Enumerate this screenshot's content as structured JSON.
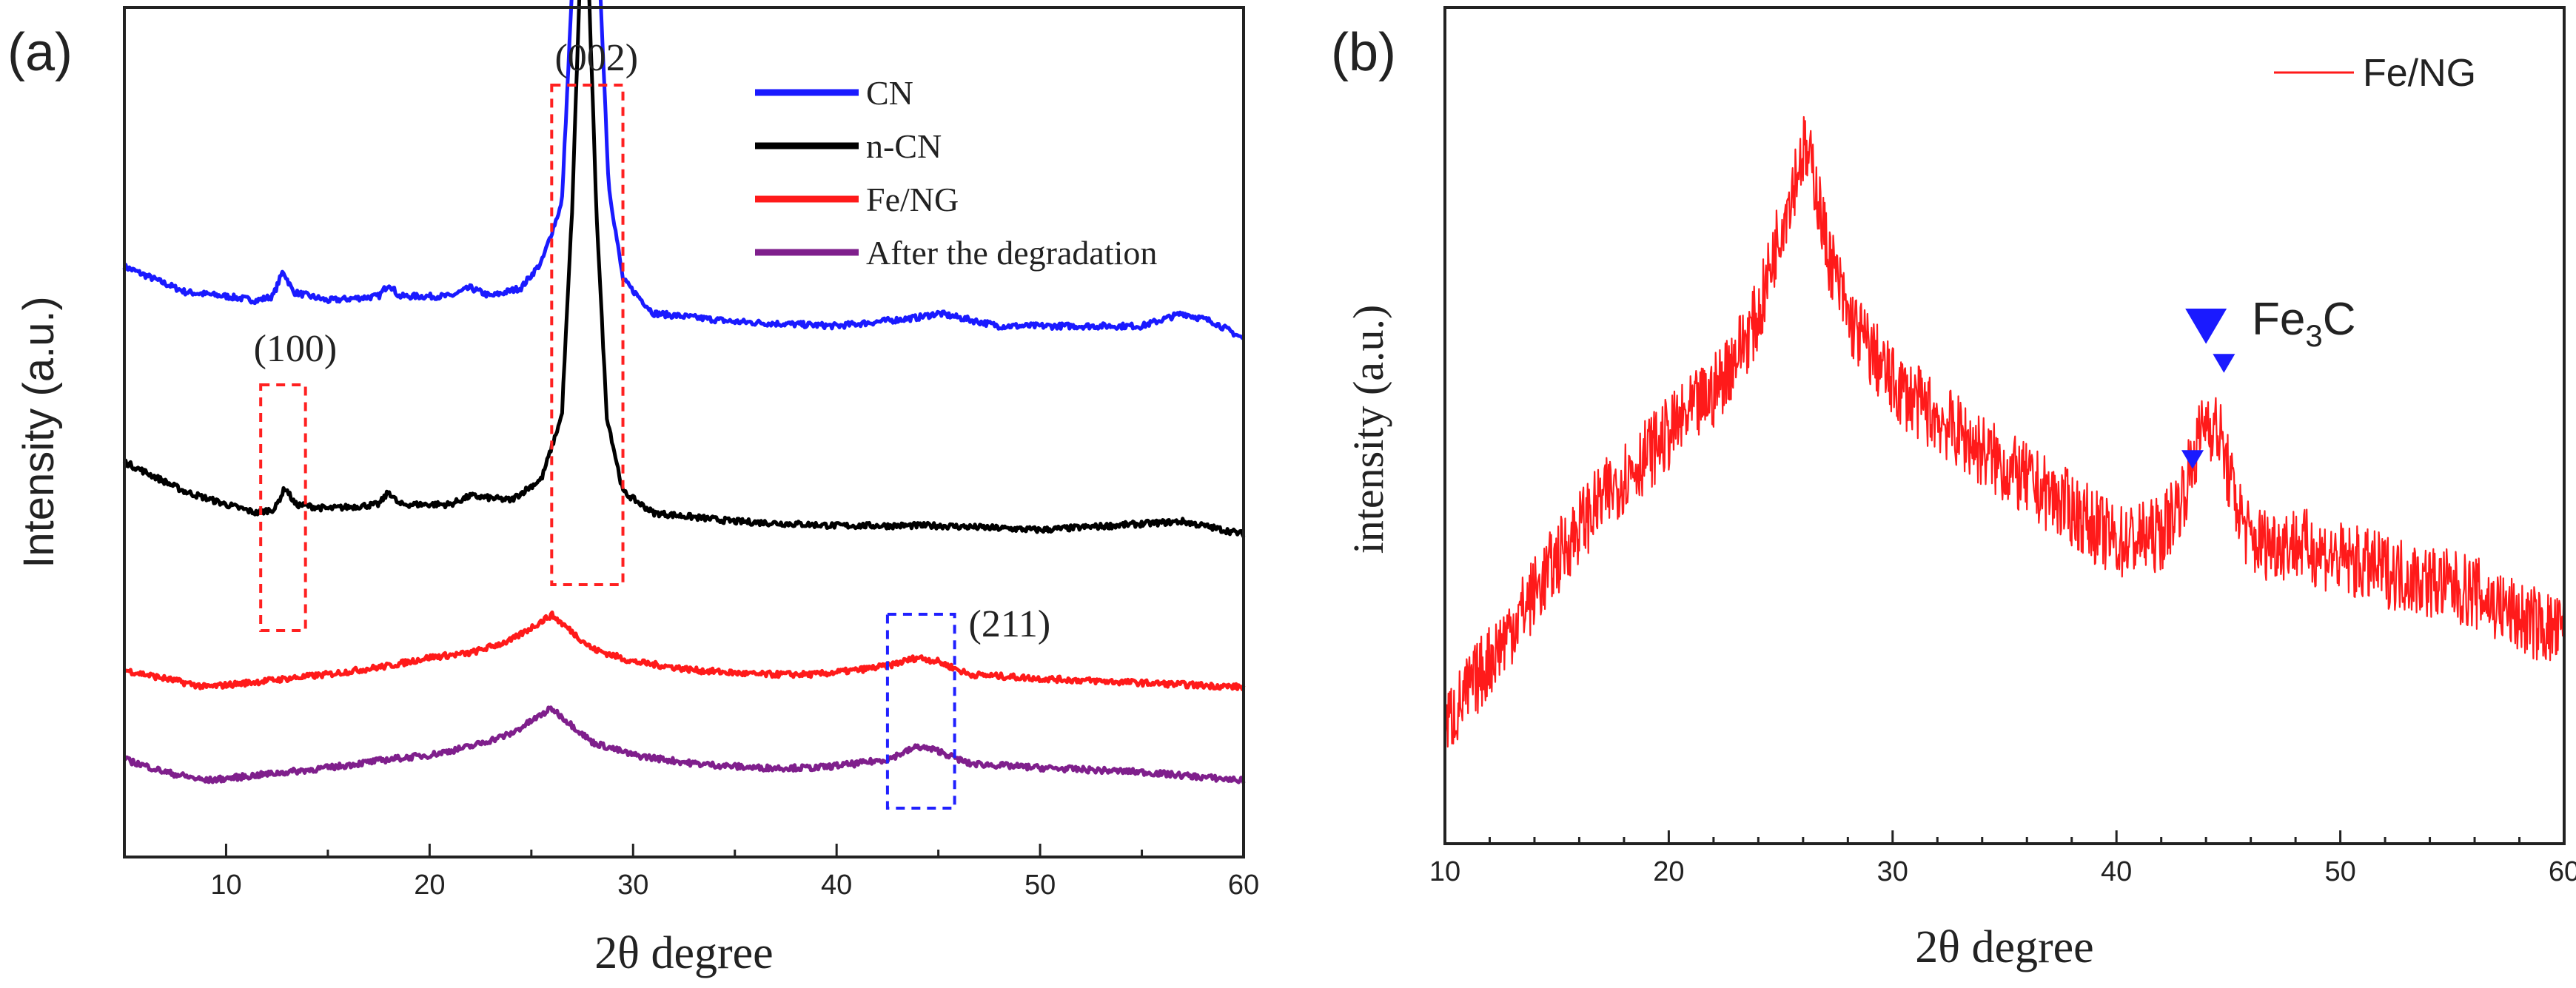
{
  "chart_data": [
    {
      "type": "line",
      "panel_label": "(a)",
      "xlabel": "2θ  degree",
      "ylabel": "Intensity (a.u.)",
      "xlim": [
        5,
        60
      ],
      "xticks": [
        10,
        20,
        30,
        40,
        50,
        60
      ],
      "ylim": [
        0,
        1
      ],
      "legend_position": "top-right",
      "series": [
        {
          "name": "CN",
          "color": "#1a1aff",
          "offset": 0.57,
          "points": [
            [
              5,
              0.125
            ],
            [
              8,
              0.095
            ],
            [
              10,
              0.09
            ],
            [
              11.5,
              0.085
            ],
            [
              12.3,
              0.09
            ],
            [
              12.8,
              0.12
            ],
            [
              13.3,
              0.095
            ],
            [
              15,
              0.085
            ],
            [
              17.5,
              0.09
            ],
            [
              18,
              0.105
            ],
            [
              18.5,
              0.09
            ],
            [
              21,
              0.09
            ],
            [
              22,
              0.1
            ],
            [
              23,
              0.09
            ],
            [
              24.5,
              0.1
            ],
            [
              25.5,
              0.13
            ],
            [
              26.5,
              0.2
            ],
            [
              27.1,
              0.5
            ],
            [
              27.5,
              0.85
            ],
            [
              27.7,
              0.93
            ],
            [
              27.9,
              0.85
            ],
            [
              28.3,
              0.5
            ],
            [
              28.8,
              0.22
            ],
            [
              29.5,
              0.11
            ],
            [
              31,
              0.07
            ],
            [
              35,
              0.06
            ],
            [
              40,
              0.055
            ],
            [
              44,
              0.065
            ],
            [
              45,
              0.07
            ],
            [
              48,
              0.055
            ],
            [
              55,
              0.055
            ],
            [
              57,
              0.07
            ],
            [
              58.5,
              0.06
            ],
            [
              60,
              0.04
            ]
          ]
        },
        {
          "name": "n-CN",
          "color": "#000000",
          "offset": 0.36,
          "points": [
            [
              5,
              0.105
            ],
            [
              8,
              0.07
            ],
            [
              10,
              0.055
            ],
            [
              11.5,
              0.045
            ],
            [
              12.4,
              0.05
            ],
            [
              12.9,
              0.075
            ],
            [
              13.4,
              0.055
            ],
            [
              15,
              0.05
            ],
            [
              17.5,
              0.055
            ],
            [
              18,
              0.07
            ],
            [
              18.5,
              0.055
            ],
            [
              21,
              0.055
            ],
            [
              22,
              0.065
            ],
            [
              24,
              0.06
            ],
            [
              25.5,
              0.085
            ],
            [
              26.5,
              0.16
            ],
            [
              27,
              0.4
            ],
            [
              27.4,
              0.68
            ],
            [
              27.6,
              0.74
            ],
            [
              27.8,
              0.68
            ],
            [
              28.2,
              0.4
            ],
            [
              28.7,
              0.16
            ],
            [
              29.5,
              0.07
            ],
            [
              31,
              0.045
            ],
            [
              35,
              0.035
            ],
            [
              40,
              0.03
            ],
            [
              45,
              0.03
            ],
            [
              50,
              0.025
            ],
            [
              57,
              0.035
            ],
            [
              60,
              0.02
            ]
          ]
        },
        {
          "name": "Fe/NG",
          "color": "#ff1a1a",
          "offset": 0.205,
          "points": [
            [
              5,
              0.015
            ],
            [
              7,
              0.005
            ],
            [
              9,
              -0.005
            ],
            [
              11,
              0.0
            ],
            [
              13,
              0.005
            ],
            [
              15,
              0.01
            ],
            [
              18,
              0.02
            ],
            [
              20,
              0.03
            ],
            [
              22,
              0.035
            ],
            [
              24,
              0.05
            ],
            [
              25,
              0.065
            ],
            [
              26,
              0.08
            ],
            [
              27,
              0.06
            ],
            [
              28,
              0.04
            ],
            [
              30,
              0.025
            ],
            [
              33,
              0.015
            ],
            [
              36,
              0.01
            ],
            [
              39,
              0.01
            ],
            [
              41,
              0.015
            ],
            [
              42.5,
              0.02
            ],
            [
              44,
              0.03
            ],
            [
              45,
              0.025
            ],
            [
              46.5,
              0.01
            ],
            [
              50,
              0.005
            ],
            [
              55,
              0.0
            ],
            [
              60,
              -0.005
            ]
          ]
        },
        {
          "name": "After the degradation",
          "color": "#7f1f8c",
          "offset": 0.09,
          "points": [
            [
              5,
              0.025
            ],
            [
              7,
              0.01
            ],
            [
              9,
              0.0
            ],
            [
              11,
              0.005
            ],
            [
              13,
              0.01
            ],
            [
              15,
              0.015
            ],
            [
              18,
              0.025
            ],
            [
              20,
              0.03
            ],
            [
              22,
              0.04
            ],
            [
              24,
              0.055
            ],
            [
              25,
              0.07
            ],
            [
              26,
              0.085
            ],
            [
              27,
              0.065
            ],
            [
              28,
              0.045
            ],
            [
              30,
              0.03
            ],
            [
              33,
              0.02
            ],
            [
              36,
              0.015
            ],
            [
              39,
              0.015
            ],
            [
              41,
              0.02
            ],
            [
              42.5,
              0.025
            ],
            [
              44,
              0.04
            ],
            [
              45,
              0.035
            ],
            [
              46.5,
              0.02
            ],
            [
              50,
              0.015
            ],
            [
              55,
              0.01
            ],
            [
              60,
              0.0
            ]
          ]
        }
      ],
      "annotations": [
        {
          "text": "(002)",
          "x": 28.2,
          "box": [
            26,
            29.5
          ],
          "box_color": "#ff2020"
        },
        {
          "text": "(100)",
          "x": 13.4,
          "box": [
            11.7,
            13.9
          ],
          "box_color": "#ff2020"
        },
        {
          "text": "(211)",
          "x": 48.5,
          "box": [
            42.5,
            45.8
          ],
          "box_color": "#2020ff"
        }
      ]
    },
    {
      "type": "line",
      "panel_label": "(b)",
      "xlabel": "2θ degree",
      "ylabel": "intensity (a.u.)",
      "xlim": [
        10,
        60
      ],
      "xticks": [
        10,
        20,
        30,
        40,
        50,
        60
      ],
      "ylim": [
        0,
        1
      ],
      "legend_position": "top-right",
      "series": [
        {
          "name": "Fe/NG",
          "color": "#ff1a1a",
          "points": [
            [
              10,
              0.14
            ],
            [
              12,
              0.22
            ],
            [
              14,
              0.3
            ],
            [
              16,
              0.38
            ],
            [
              18,
              0.44
            ],
            [
              20,
              0.49
            ],
            [
              22,
              0.54
            ],
            [
              24,
              0.63
            ],
            [
              25,
              0.74
            ],
            [
              26,
              0.83
            ],
            [
              26.5,
              0.8
            ],
            [
              27,
              0.72
            ],
            [
              28,
              0.63
            ],
            [
              30,
              0.55
            ],
            [
              32,
              0.51
            ],
            [
              35,
              0.45
            ],
            [
              38,
              0.4
            ],
            [
              40,
              0.36
            ],
            [
              42,
              0.37
            ],
            [
              43,
              0.42
            ],
            [
              44,
              0.51
            ],
            [
              44.6,
              0.49
            ],
            [
              45.2,
              0.42
            ],
            [
              46,
              0.36
            ],
            [
              48,
              0.36
            ],
            [
              50,
              0.34
            ],
            [
              53,
              0.32
            ],
            [
              56,
              0.3
            ],
            [
              58,
              0.27
            ],
            [
              60,
              0.25
            ]
          ]
        }
      ],
      "annotations": [
        {
          "text": "Fe",
          "subscript": "3",
          "suffix": "C",
          "markers": [
            [
              44.0,
              0.62,
              "large"
            ],
            [
              44.8,
              0.575,
              "small"
            ],
            [
              43.4,
              0.46,
              "small"
            ]
          ],
          "marker_color": "#1a1aff"
        }
      ]
    }
  ]
}
